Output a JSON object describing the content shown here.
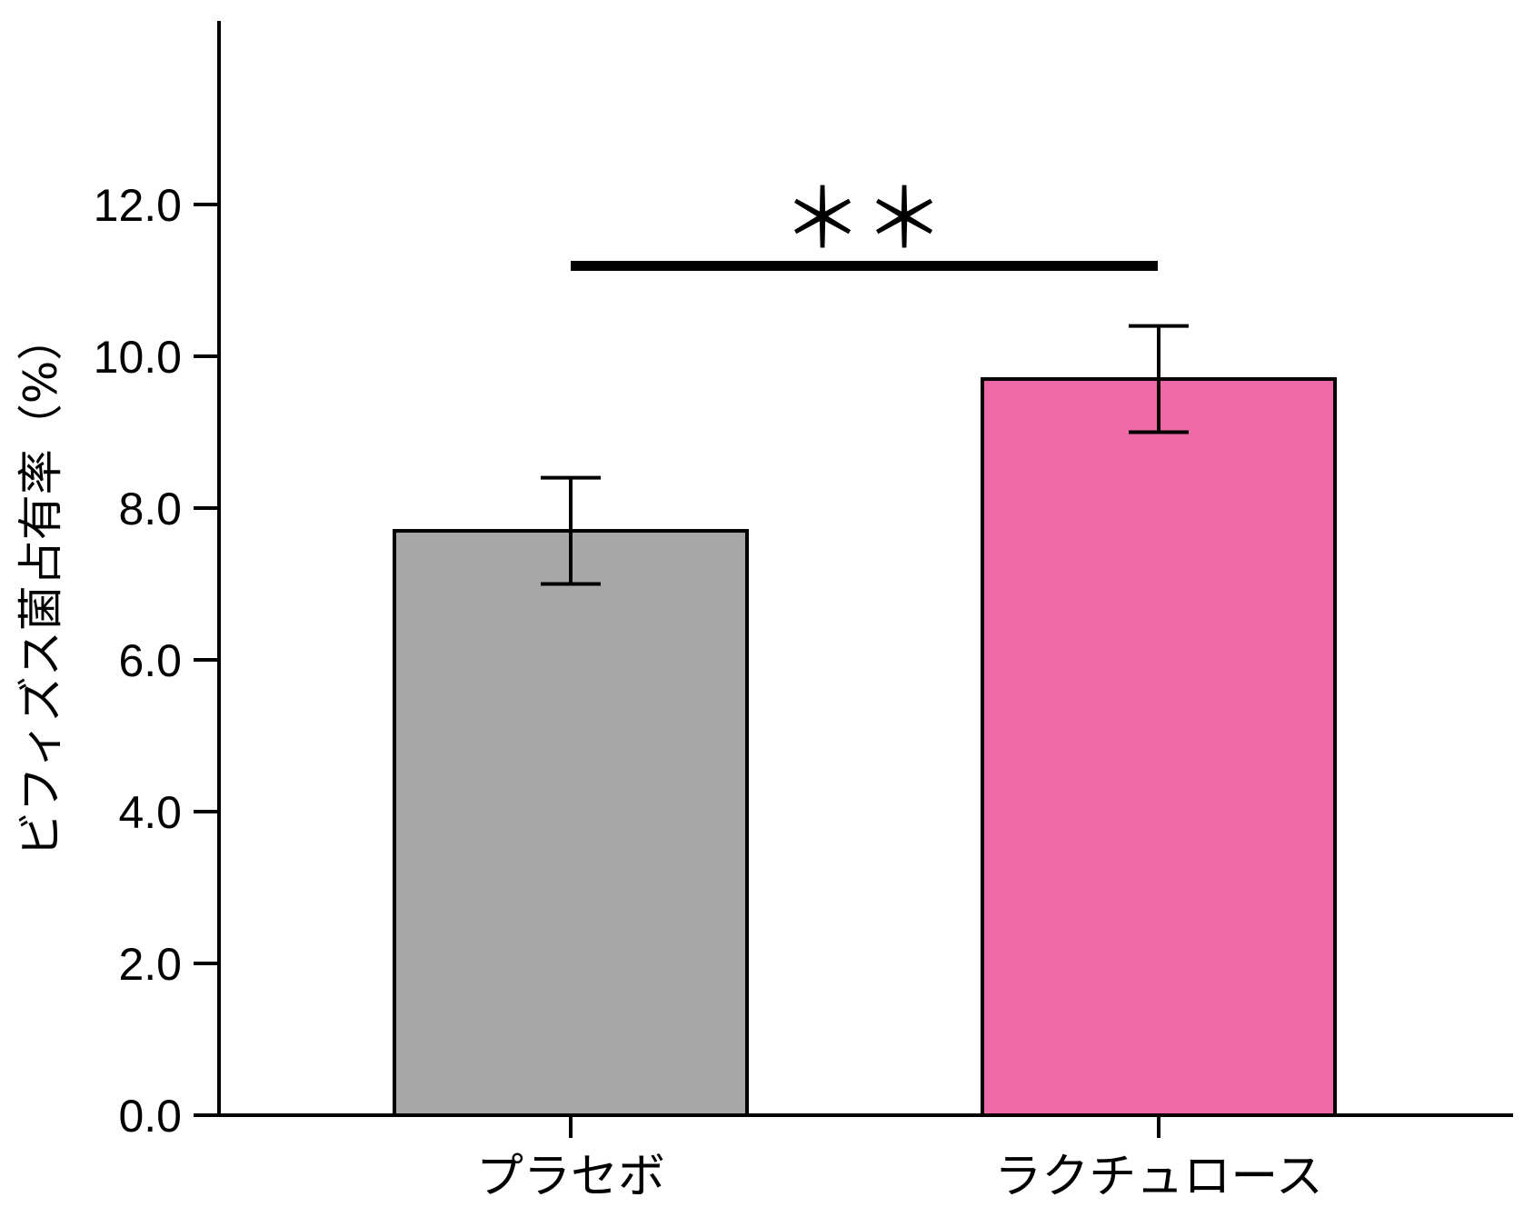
{
  "chart_data": {
    "type": "bar",
    "title": "",
    "xlabel": "",
    "ylabel": "ビフィズス菌占有率（%）",
    "categories": [
      "プラセボ",
      "ラクチュロース"
    ],
    "values": [
      7.7,
      9.7
    ],
    "error_bars": [
      {
        "low": 7.0,
        "high": 8.4
      },
      {
        "low": 9.0,
        "high": 10.4
      }
    ],
    "colors": [
      "#a8a7a8",
      "#ee6aa6"
    ],
    "ylim": [
      0,
      14.4
    ],
    "yticks": [
      0.0,
      2.0,
      4.0,
      6.0,
      8.0,
      10.0,
      12.0
    ],
    "ytick_labels": [
      "0.0",
      "2.0",
      "4.0",
      "6.0",
      "8.0",
      "10.0",
      "12.0"
    ],
    "grid": false,
    "legend": null,
    "annotations": [
      {
        "type": "significance_bracket",
        "from": "プラセボ",
        "to": "ラクチュロース",
        "label": "＊＊",
        "y": 11.2
      }
    ]
  }
}
